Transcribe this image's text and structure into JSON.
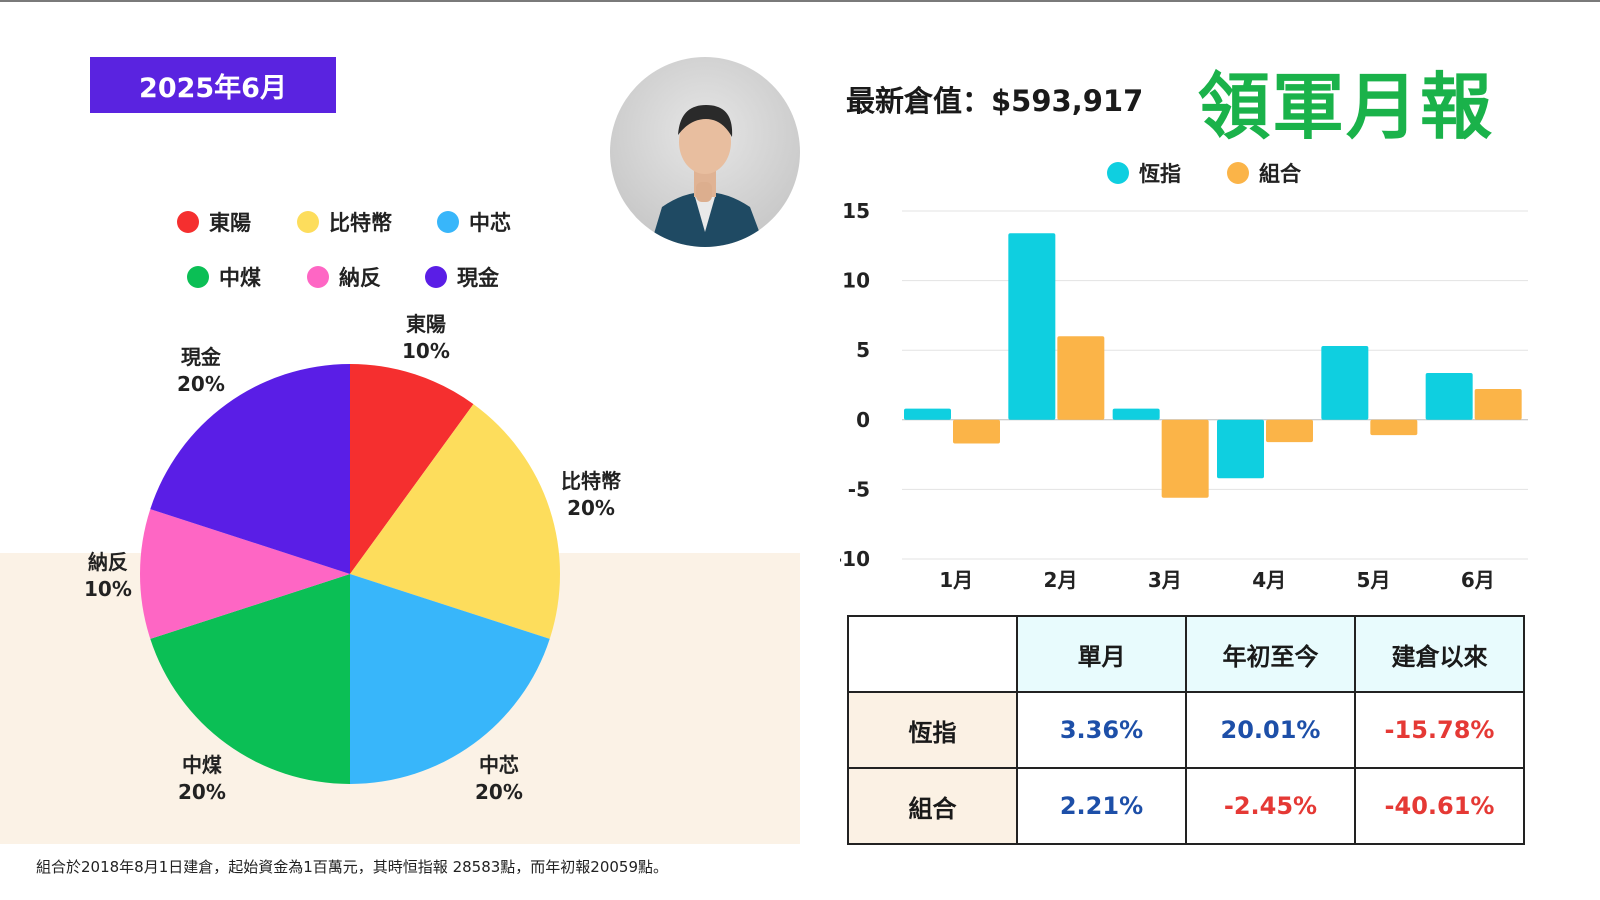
{
  "date_badge": "2025年6月",
  "latest_value_label": "最新倉值：$593,917",
  "report_title": "領軍月報",
  "pie_legend": [
    {
      "name": "東陽",
      "color": "#f52f2f"
    },
    {
      "name": "比特幣",
      "color": "#fddd5c"
    },
    {
      "name": "中芯",
      "color": "#38b6fa"
    },
    {
      "name": "中煤",
      "color": "#0bbf55"
    },
    {
      "name": "納反",
      "color": "#fe66c4"
    },
    {
      "name": "現金",
      "color": "#5a1ee6"
    }
  ],
  "pie_labels": [
    {
      "name": "東陽",
      "pct": "10%"
    },
    {
      "name": "比特幣",
      "pct": "20%"
    },
    {
      "name": "中芯",
      "pct": "20%"
    },
    {
      "name": "中煤",
      "pct": "20%"
    },
    {
      "name": "納反",
      "pct": "10%"
    },
    {
      "name": "現金",
      "pct": "20%"
    }
  ],
  "chart_data": [
    {
      "type": "pie",
      "labels": [
        "東陽",
        "比特幣",
        "中芯",
        "中煤",
        "納反",
        "現金"
      ],
      "values": [
        10,
        20,
        20,
        20,
        10,
        20
      ],
      "colors": [
        "#f52f2f",
        "#fddd5c",
        "#38b6fa",
        "#0bbf55",
        "#fe66c4",
        "#5a1ee6"
      ],
      "legend_placement": "top"
    },
    {
      "type": "bar",
      "categories": [
        "1月",
        "2月",
        "3月",
        "4月",
        "5月",
        "6月"
      ],
      "series": [
        {
          "name": "恆指",
          "color": "#0fcfe0",
          "values": [
            0.8,
            13.4,
            0.8,
            -4.2,
            5.3,
            3.36
          ]
        },
        {
          "name": "組合",
          "color": "#fbb448",
          "values": [
            -1.7,
            6.0,
            -5.6,
            -1.6,
            -1.1,
            2.21
          ]
        }
      ],
      "ylim": [
        -10,
        15
      ],
      "yticks": [
        15,
        10,
        5,
        0,
        -5,
        -10
      ],
      "grid": true,
      "legend_placement": "top"
    }
  ],
  "table": {
    "headers": [
      "單月",
      "年初至今",
      "建倉以來"
    ],
    "rows": [
      {
        "label": "恆指",
        "values": [
          "3.36%",
          "20.01%",
          "-15.78%"
        ],
        "signs": [
          "pos",
          "pos",
          "neg"
        ]
      },
      {
        "label": "組合",
        "values": [
          "2.21%",
          "-2.45%",
          "-40.61%"
        ],
        "signs": [
          "pos",
          "neg",
          "neg"
        ]
      }
    ]
  },
  "footnote": "組合於2018年8月1日建倉，起始資金為1百萬元，其時恒指報 28583點，而年初報20059點。"
}
